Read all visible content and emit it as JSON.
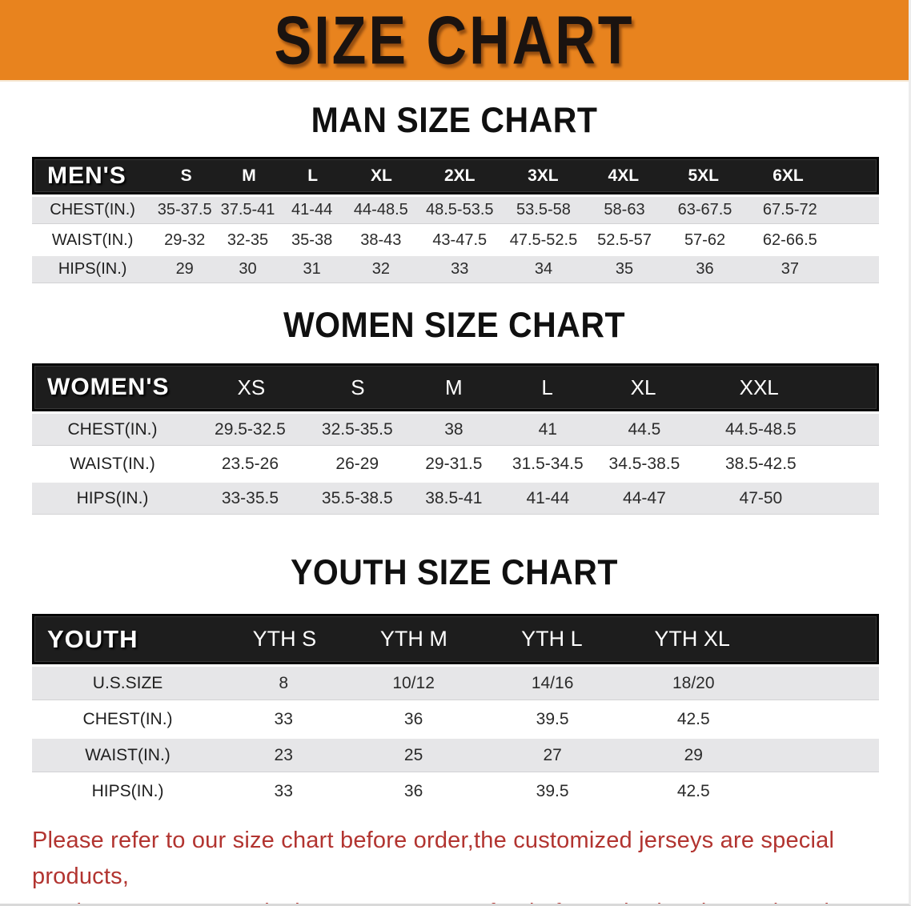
{
  "banner": {
    "title": "SIZE CHART",
    "bg_color": "#E8831E",
    "text_color": "#1A1310"
  },
  "sections": [
    {
      "title": "MAN SIZE CHART",
      "header_label": "MEN'S",
      "columns": [
        "S",
        "M",
        "L",
        "XL",
        "2XL",
        "3XL",
        "4XL",
        "5XL",
        "6XL"
      ],
      "rows": [
        {
          "label": "CHEST(IN.)",
          "values": [
            "35-37.5",
            "37.5-41",
            "41-44",
            "44-48.5",
            "48.5-53.5",
            "53.5-58",
            "58-63",
            "63-67.5",
            "67.5-72"
          ]
        },
        {
          "label": "WAIST(IN.)",
          "values": [
            "29-32",
            "32-35",
            "35-38",
            "38-43",
            "43-47.5",
            "47.5-52.5",
            "52.5-57",
            "57-62",
            "62-66.5"
          ]
        },
        {
          "label": "HIPS(IN.)",
          "values": [
            "29",
            "30",
            "31",
            "32",
            "33",
            "34",
            "35",
            "36",
            "37"
          ]
        }
      ]
    },
    {
      "title": "WOMEN SIZE CHART",
      "header_label": "WOMEN'S",
      "columns": [
        "XS",
        "S",
        "M",
        "L",
        "XL",
        "XXL"
      ],
      "rows": [
        {
          "label": "CHEST(IN.)",
          "values": [
            "29.5-32.5",
            "32.5-35.5",
            "38",
            "41",
            "44.5",
            "44.5-48.5"
          ]
        },
        {
          "label": "WAIST(IN.)",
          "values": [
            "23.5-26",
            "26-29",
            "29-31.5",
            "31.5-34.5",
            "34.5-38.5",
            "38.5-42.5"
          ]
        },
        {
          "label": "HIPS(IN.)",
          "values": [
            "33-35.5",
            "35.5-38.5",
            "38.5-41",
            "41-44",
            "44-47",
            "47-50"
          ]
        }
      ]
    },
    {
      "title": "YOUTH SIZE CHART",
      "header_label": "YOUTH",
      "columns": [
        "YTH S",
        "YTH M",
        "YTH L",
        "YTH XL"
      ],
      "rows": [
        {
          "label": "U.S.SIZE",
          "values": [
            "8",
            "10/12",
            "14/16",
            "18/20"
          ]
        },
        {
          "label": "CHEST(IN.)",
          "values": [
            "33",
            "36",
            "39.5",
            "42.5"
          ]
        },
        {
          "label": "WAIST(IN.)",
          "values": [
            "23",
            "25",
            "27",
            "29"
          ]
        },
        {
          "label": "HIPS(IN.)",
          "values": [
            "33",
            "36",
            "39.5",
            "42.5"
          ]
        }
      ]
    }
  ],
  "footer": {
    "lines": [
      "Please refer to our size chart before order,the customized jerseys are special products,",
      "we don't accept cancel, change, teturn or refund after order has been placed!"
    ],
    "text_color": "#B23430"
  },
  "colors": {
    "header_bar": "#1D1D1D",
    "row_shade": "#E6E6E8",
    "row_plain": "#FFFFFF"
  }
}
